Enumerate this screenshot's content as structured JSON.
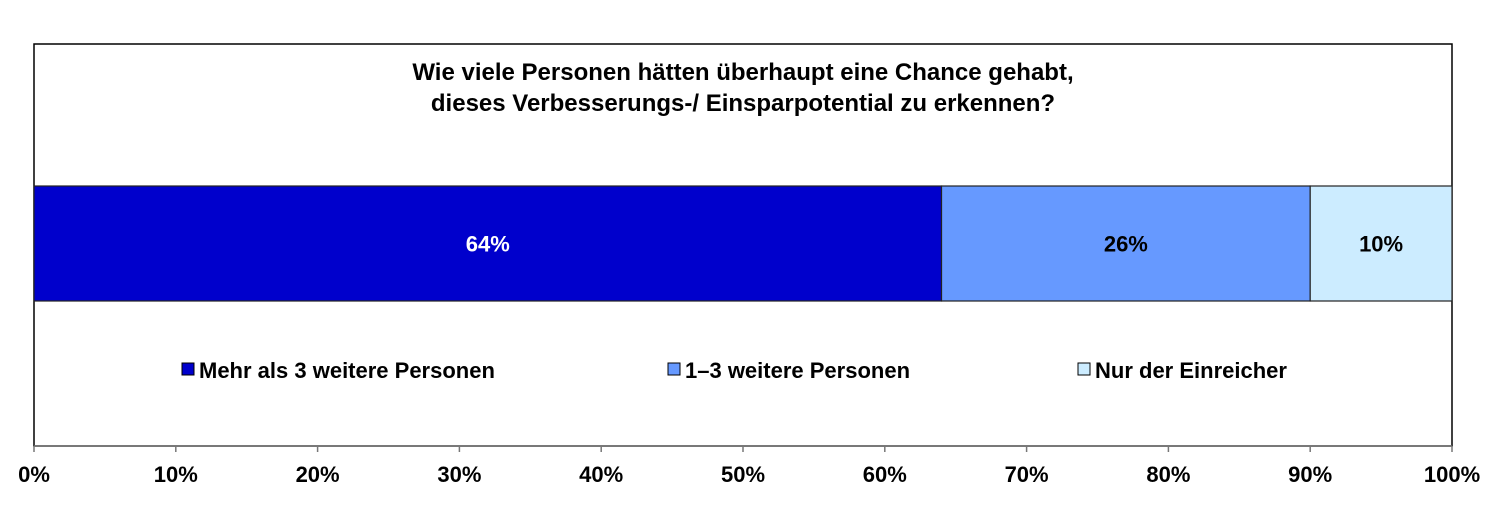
{
  "chart_data": {
    "type": "bar",
    "orientation": "horizontal",
    "stacked": true,
    "percent": true,
    "title": "Wie viele Personen hätten überhaupt eine Chance gehabt,\ndieses Verbesserungs-/ Einsparpotential zu erkennen?",
    "title_lines": [
      "Wie viele Personen hätten überhaupt eine Chance gehabt,",
      "dieses Verbesserungs-/ Einsparpotential zu erkennen?"
    ],
    "xlabel": "",
    "ylabel": "",
    "xlim": [
      0,
      100
    ],
    "x_ticks": [
      "0%",
      "10%",
      "20%",
      "30%",
      "40%",
      "50%",
      "60%",
      "70%",
      "80%",
      "90%",
      "100%"
    ],
    "grid": false,
    "legend_position": "inside-bottom",
    "series": [
      {
        "name": "Mehr als 3 weitere Personen",
        "value": 64,
        "label": "64%",
        "color": "#0000CC",
        "label_color": "#FFFFFF"
      },
      {
        "name": "1–3 weitere Personen",
        "value": 26,
        "label": "26%",
        "color": "#6699FF",
        "label_color": "#000000"
      },
      {
        "name": "Nur der Einreicher",
        "value": 10,
        "label": "10%",
        "color": "#CCECFF",
        "label_color": "#000000"
      }
    ]
  }
}
